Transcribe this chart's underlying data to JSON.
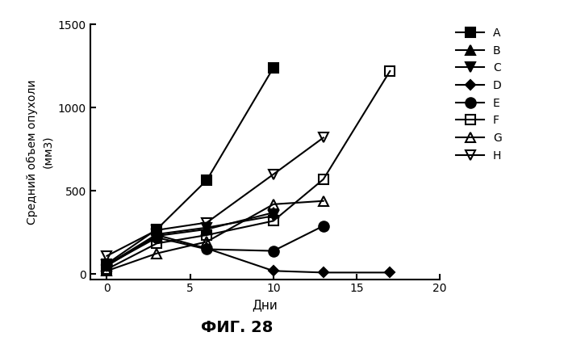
{
  "fig_caption": "ФИГ. 28",
  "xlabel": "Дни",
  "ylabel": "Средний объем опухоли\n(мм3)",
  "xlim": [
    -1,
    20
  ],
  "ylim": [
    -30,
    1500
  ],
  "xticks": [
    0,
    5,
    10,
    15,
    20
  ],
  "yticks": [
    0,
    500,
    1000,
    1500
  ],
  "series": [
    {
      "label": "A",
      "x": [
        0,
        3,
        6,
        10
      ],
      "y": [
        62,
        270,
        565,
        1240
      ],
      "marker": "s",
      "markersize": 8,
      "fillstyle": "full",
      "linewidth": 1.5
    },
    {
      "label": "B",
      "x": [
        0,
        3,
        6,
        10
      ],
      "y": [
        50,
        230,
        270,
        370
      ],
      "marker": "^",
      "markersize": 8,
      "fillstyle": "full",
      "linewidth": 1.5
    },
    {
      "label": "C",
      "x": [
        0,
        3,
        6,
        10
      ],
      "y": [
        55,
        240,
        280,
        350
      ],
      "marker": "v",
      "markersize": 8,
      "fillstyle": "full",
      "linewidth": 1.5
    },
    {
      "label": "D",
      "x": [
        0,
        3,
        6,
        10,
        13,
        17
      ],
      "y": [
        55,
        235,
        155,
        20,
        10,
        10
      ],
      "marker": "D",
      "markersize": 6,
      "fillstyle": "full",
      "linewidth": 1.5
    },
    {
      "label": "E",
      "x": [
        0,
        3,
        6,
        10,
        13
      ],
      "y": [
        55,
        220,
        150,
        140,
        290
      ],
      "marker": "o",
      "markersize": 9,
      "fillstyle": "full",
      "linewidth": 1.5
    },
    {
      "label": "F",
      "x": [
        0,
        3,
        6,
        10,
        13,
        17
      ],
      "y": [
        30,
        185,
        235,
        320,
        570,
        1220
      ],
      "marker": "s",
      "markersize": 8,
      "fillstyle": "none",
      "linewidth": 1.5
    },
    {
      "label": "G",
      "x": [
        0,
        3,
        6,
        10,
        13
      ],
      "y": [
        20,
        125,
        195,
        420,
        440
      ],
      "marker": "^",
      "markersize": 8,
      "fillstyle": "none",
      "linewidth": 1.5
    },
    {
      "label": "H",
      "x": [
        0,
        3,
        6,
        10,
        13
      ],
      "y": [
        110,
        265,
        310,
        600,
        820
      ],
      "marker": "v",
      "markersize": 8,
      "fillstyle": "none",
      "linewidth": 1.5
    }
  ]
}
